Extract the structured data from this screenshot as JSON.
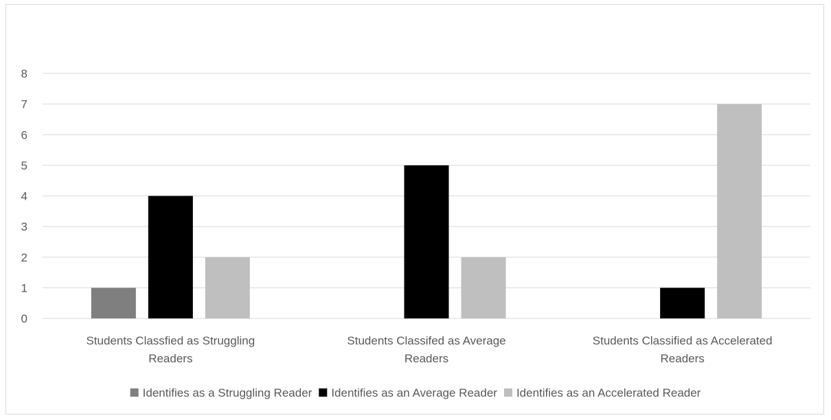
{
  "chart_data": {
    "type": "bar",
    "title": "",
    "xlabel": "",
    "ylabel": "",
    "ylim": [
      0,
      8
    ],
    "yticks": [
      0,
      1,
      2,
      3,
      4,
      5,
      6,
      7,
      8
    ],
    "grid": true,
    "legend_position": "bottom",
    "categories": [
      [
        "Students Classfied as Struggling",
        "Readers"
      ],
      [
        "Students Classifed as Average",
        "Readers"
      ],
      [
        "Students Classified as Accelerated",
        "Readers"
      ]
    ],
    "series": [
      {
        "name": "Identifies as a Struggling Reader",
        "color": "#7f7f7f",
        "values": [
          1,
          0,
          0
        ]
      },
      {
        "name": "Identifies as an Average Reader",
        "color": "#000000",
        "values": [
          4,
          5,
          1
        ]
      },
      {
        "name": "Identifies as an Accelerated Reader",
        "color": "#bfbfbf",
        "values": [
          2,
          2,
          7
        ]
      }
    ]
  }
}
